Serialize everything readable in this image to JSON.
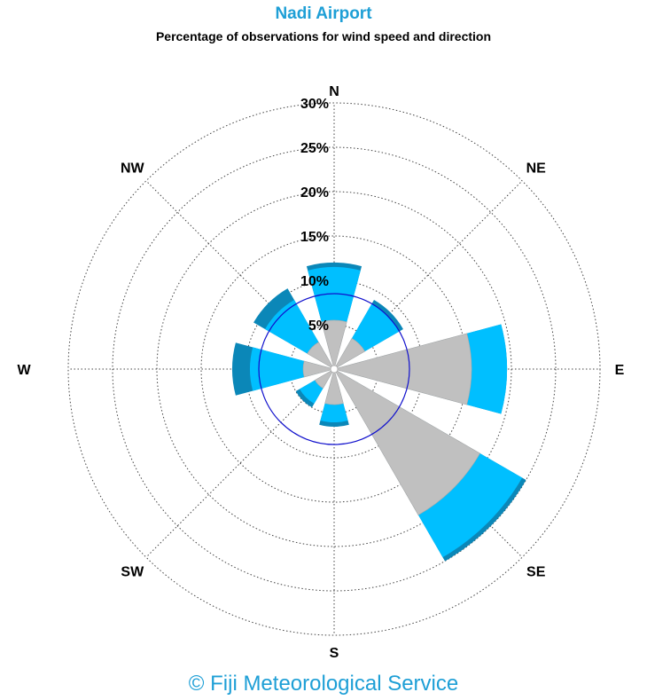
{
  "title": "Nadi Airport",
  "subtitle": "Percentage of observations for wind speed and direction",
  "credit": "© Fiji Meteorological Service",
  "colors": {
    "title": "#1e9fd6",
    "calm_circle": "#1010cc",
    "band_light": "#c0c0c0",
    "band_mid": "#00bfff",
    "band_dark": "#0b87b8",
    "grid": "#444444"
  },
  "chart_data": {
    "type": "wind-rose",
    "title": "Nadi Airport",
    "subtitle": "Percentage of observations for wind speed and direction",
    "directions": [
      "N",
      "NE",
      "E",
      "SE",
      "S",
      "SW",
      "W",
      "NW"
    ],
    "radial_ticks": [
      "5%",
      "10%",
      "15%",
      "20%",
      "25%",
      "30%"
    ],
    "radial_tick_values": [
      5,
      10,
      15,
      20,
      25,
      30
    ],
    "rmax": 30,
    "calm_circle_percent": 8.5,
    "grid": true,
    "speed_bands": [
      {
        "color": "#c0c0c0",
        "cumulative": [
          5.5,
          4.0,
          15.5,
          19.0,
          4.0,
          2.5,
          3.5,
          3.5
        ]
      },
      {
        "color": "#00bfff",
        "cumulative": [
          11.5,
          8.5,
          19.5,
          24.5,
          6.0,
          4.5,
          9.5,
          9.0
        ]
      },
      {
        "color": "#0b87b8",
        "cumulative": [
          12.0,
          9.0,
          19.5,
          25.0,
          6.5,
          5.0,
          11.5,
          10.5
        ]
      }
    ]
  }
}
